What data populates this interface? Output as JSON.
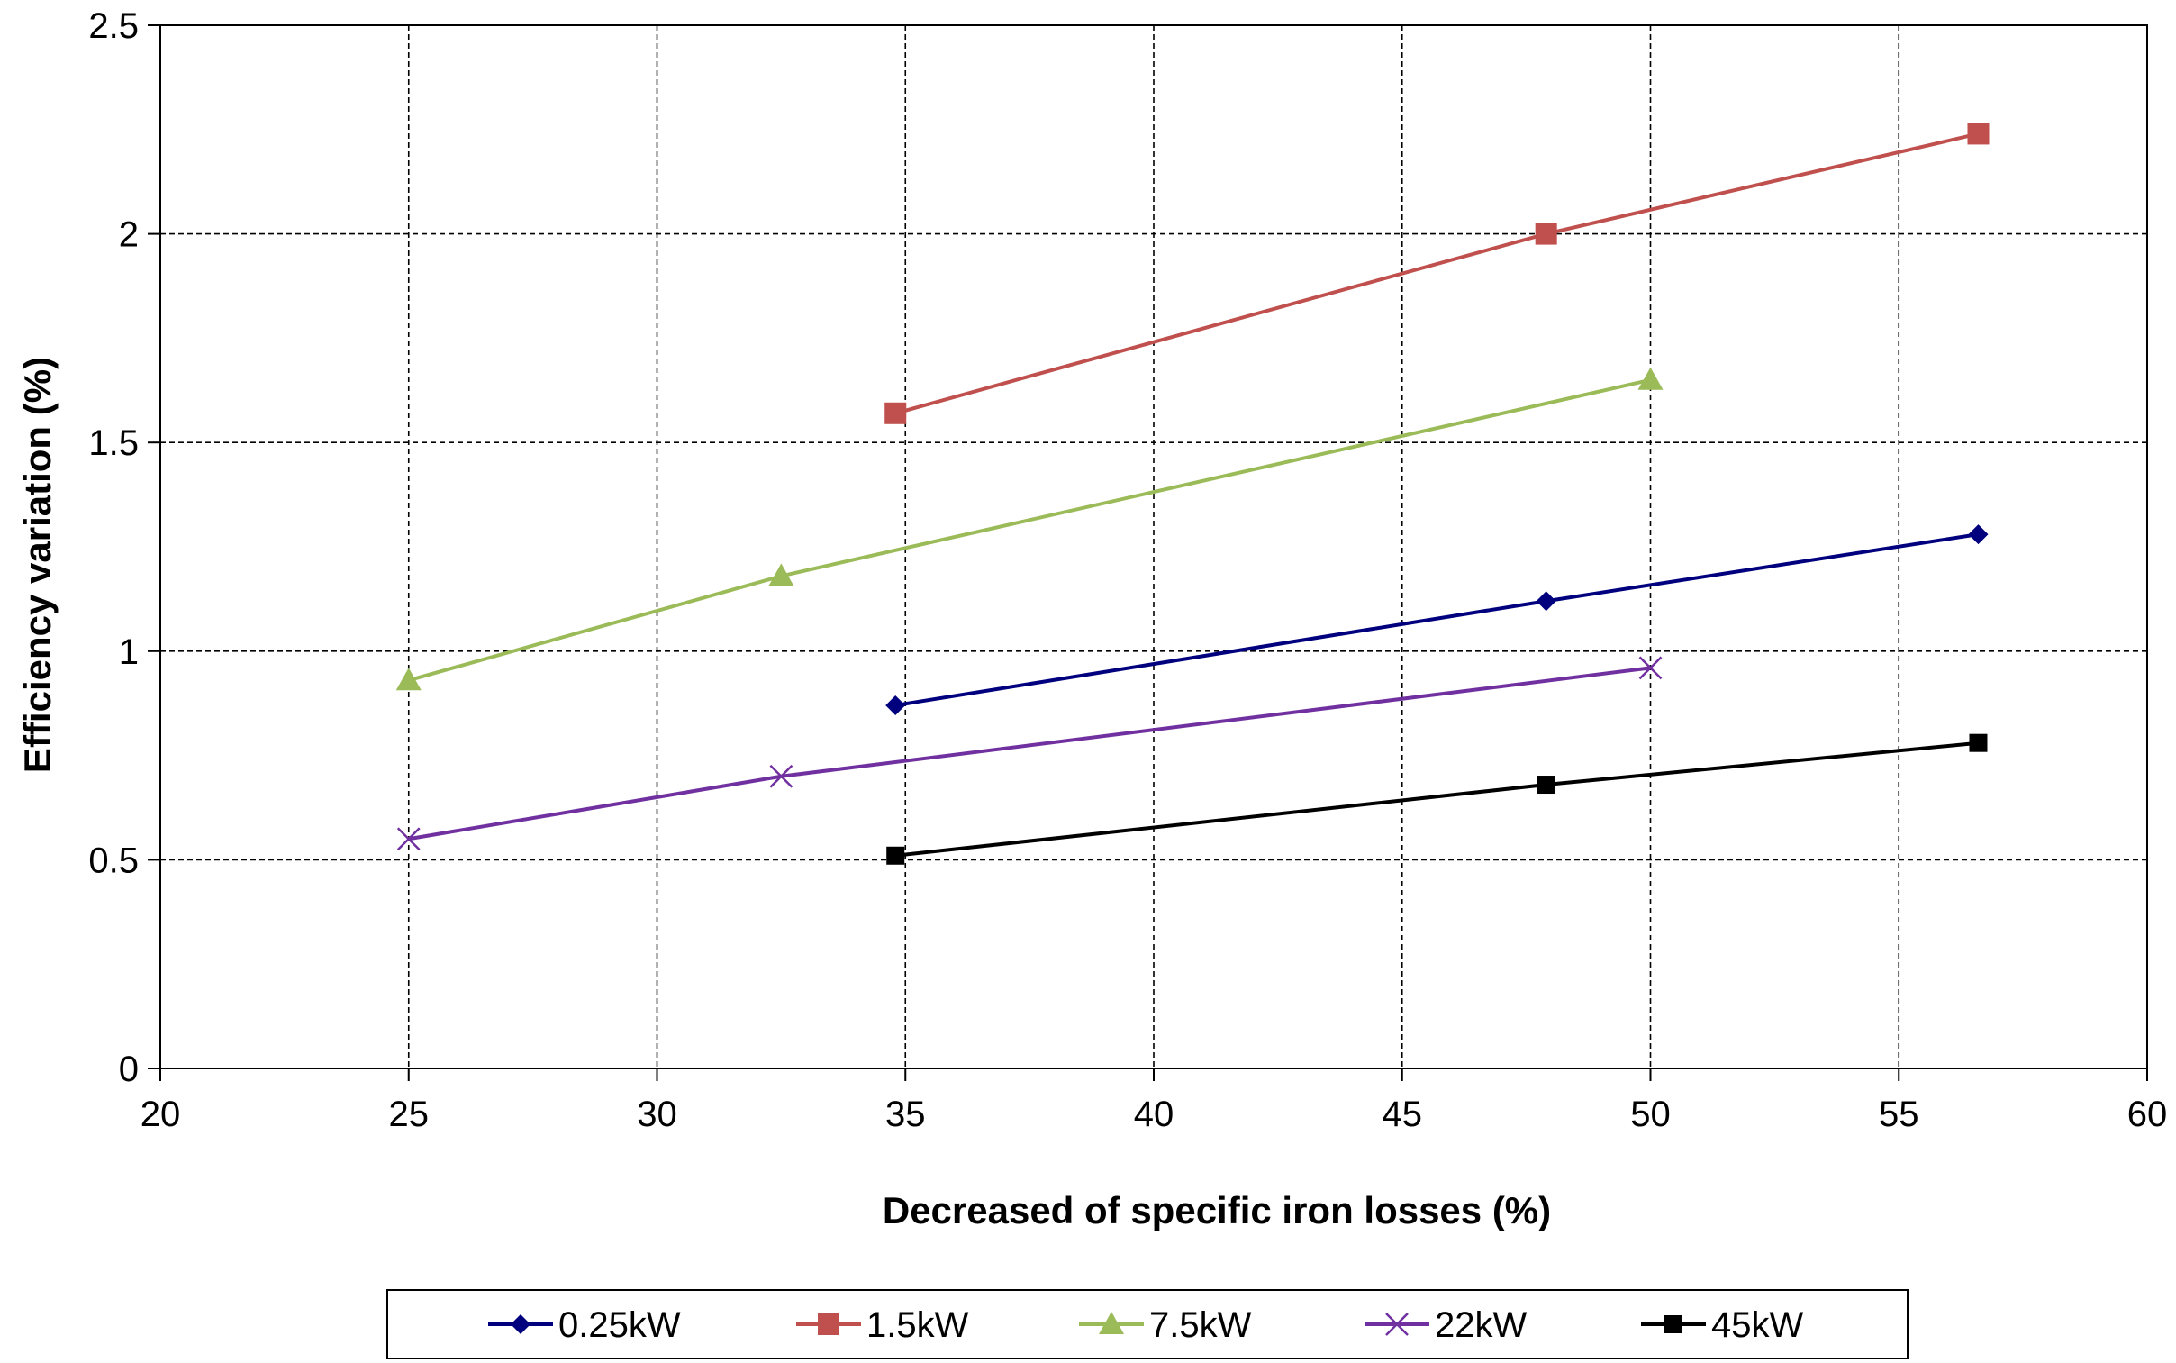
{
  "chart_data": {
    "type": "line",
    "title": "",
    "xlabel": "Decreased of specific iron losses (%)",
    "ylabel": "Efficiency variation (%)",
    "xlim": [
      20,
      60
    ],
    "ylim": [
      0,
      2.5
    ],
    "xticks": [
      20,
      25,
      30,
      35,
      40,
      45,
      50,
      55,
      60
    ],
    "yticks": [
      0,
      0.5,
      1,
      1.5,
      2,
      2.5
    ],
    "xtick_labels": [
      "20",
      "25",
      "30",
      "35",
      "40",
      "45",
      "50",
      "55",
      "60"
    ],
    "ytick_labels": [
      "0",
      "0.5",
      "1",
      "1.5",
      "2",
      "2.5"
    ],
    "grid": true,
    "legend_position": "bottom",
    "series": [
      {
        "name": "0.25kW",
        "color": "#00007f",
        "marker": "diamond",
        "x": [
          34.8,
          47.9,
          56.6
        ],
        "y": [
          0.87,
          1.12,
          1.28
        ]
      },
      {
        "name": "1.5kW",
        "color": "#c0504d",
        "marker": "square",
        "x": [
          34.8,
          47.9,
          56.6
        ],
        "y": [
          1.57,
          2.0,
          2.24
        ]
      },
      {
        "name": "7.5kW",
        "color": "#9bbb59",
        "marker": "triangle",
        "x": [
          25,
          32.5,
          50
        ],
        "y": [
          0.93,
          1.18,
          1.65
        ]
      },
      {
        "name": "22kW",
        "color": "#7030a0",
        "marker": "x",
        "x": [
          25,
          32.5,
          50
        ],
        "y": [
          0.55,
          0.7,
          0.96
        ]
      },
      {
        "name": "45kW",
        "color": "#000000",
        "marker": "square-small",
        "x": [
          34.8,
          47.9,
          56.6
        ],
        "y": [
          0.51,
          0.68,
          0.78
        ]
      }
    ]
  }
}
